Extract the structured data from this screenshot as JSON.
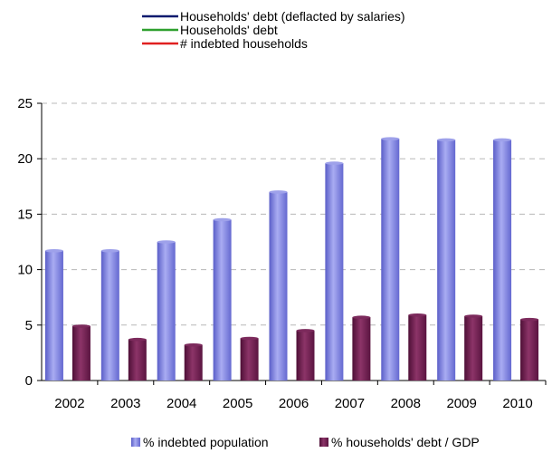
{
  "chart_data": {
    "type": "bar",
    "categories": [
      "2002",
      "2003",
      "2004",
      "2005",
      "2006",
      "2007",
      "2008",
      "2009",
      "2010"
    ],
    "series": [
      {
        "name": "% indebted population",
        "values": [
          11.7,
          11.7,
          12.5,
          14.5,
          17.0,
          19.6,
          21.8,
          21.7,
          21.7
        ],
        "color": "#7b7fdc"
      },
      {
        "name": "% households' debt / GDP",
        "values": [
          4.9,
          3.7,
          3.2,
          3.8,
          4.5,
          5.7,
          5.9,
          5.8,
          5.5
        ],
        "color": "#6e1f4e"
      }
    ],
    "line_legend": [
      {
        "name": "Households' debt (deflacted by salaries)",
        "color": "#0a1a6e"
      },
      {
        "name": "Households' debt",
        "color": "#2ea02e"
      },
      {
        "name": "# indebted households",
        "color": "#e02020"
      }
    ],
    "yticks": [
      "0",
      "5",
      "10",
      "15",
      "20",
      "25"
    ],
    "ylim": [
      0,
      25
    ],
    "grid": true,
    "legend_position": "top and bottom"
  }
}
